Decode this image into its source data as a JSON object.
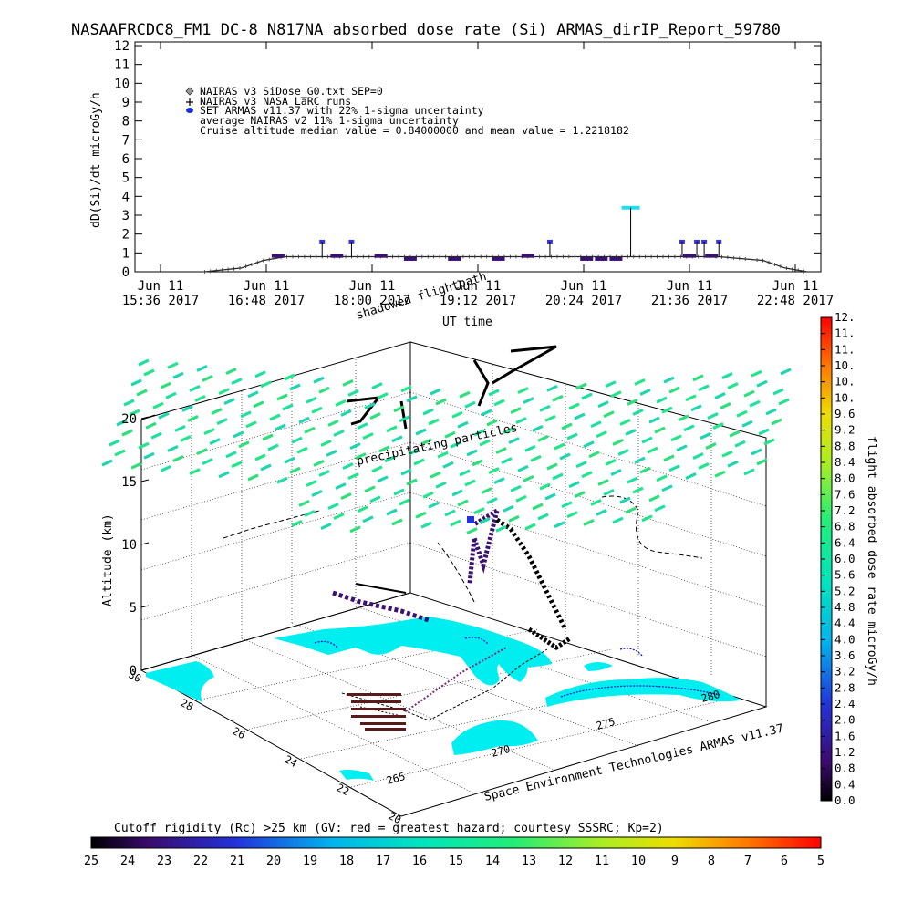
{
  "header": {
    "title": "NASAAFRCDC8_FM1 DC-8   N817NA absorbed dose rate (Si) ARMAS_dirIP_Report_59780"
  },
  "chart_data": [
    {
      "type": "line",
      "ylabel": "dD(Si)/dt microGy/h",
      "xlabel": "UT time",
      "ylim": [
        0,
        12
      ],
      "yticks": [
        "0",
        "1",
        "2",
        "3",
        "4",
        "5",
        "6",
        "7",
        "8",
        "9",
        "10",
        "11",
        "12"
      ],
      "xticks": [
        {
          "top": "Jun 11",
          "bottom": "15:36 2017"
        },
        {
          "top": "Jun 11",
          "bottom": "16:48 2017"
        },
        {
          "top": "Jun 11",
          "bottom": "18:00 2017"
        },
        {
          "top": "Jun 11",
          "bottom": "19:12 2017"
        },
        {
          "top": "Jun 11",
          "bottom": "20:24 2017"
        },
        {
          "top": "Jun 11",
          "bottom": "21:36 2017"
        },
        {
          "top": "Jun 11",
          "bottom": "22:48 2017"
        }
      ],
      "legend": [
        "NAIRAS v3 SiDose_G0.txt SEP=0",
        "NAIRAS v3 NASA LaRC runs",
        "SET ARMAS v11.37 with 22% 1-sigma uncertainty",
        "average NAIRAS v2 11% 1-sigma uncertainty",
        "Cruise altitude median value = 0.84000000 and mean value = 1.2218182"
      ],
      "legend_placement": "top-left",
      "colors": {
        "nairas": "#222222",
        "armas_cruise": "#3a1070",
        "armas_high": "#3333ee",
        "armas_peak": "#22ddee"
      },
      "series": [
        {
          "name": "NAIRAS v3 NASA LaRC runs",
          "x_minutes_from_1536": [
            30,
            55,
            70,
            85,
            100,
            140,
            200,
            260,
            300,
            340,
            380,
            410,
            425,
            440
          ],
          "values": [
            0,
            0.2,
            0.6,
            0.8,
            0.8,
            0.8,
            0.8,
            0.8,
            0.8,
            0.8,
            0.8,
            0.6,
            0.2,
            0
          ]
        },
        {
          "name": "SET ARMAS v11.37 with 22% 1-sigma uncertainty",
          "x_minutes_from_1536": [
            80,
            110,
            120,
            130,
            150,
            170,
            200,
            230,
            250,
            265,
            290,
            300,
            310,
            320,
            355,
            360,
            365,
            370,
            375,
            380
          ],
          "values": [
            0.84,
            1.6,
            0.84,
            1.6,
            0.84,
            0.68,
            0.68,
            0.68,
            0.84,
            1.6,
            0.68,
            0.68,
            0.68,
            3.4,
            1.6,
            0.84,
            1.6,
            1.6,
            0.84,
            1.6
          ]
        }
      ]
    },
    {
      "type": "scatter",
      "axis_label": "Altitude (km)",
      "zticks": [
        "0",
        "5",
        "10",
        "15",
        "20"
      ],
      "lat_ticks": [
        "30",
        "28",
        "26",
        "24",
        "22",
        "20"
      ],
      "lon_ticks": [
        "265",
        "270",
        "275",
        "280"
      ],
      "annotations": [
        "shadowed flightpath",
        "precipitating particles"
      ],
      "credit": "Space Environment Technologies ARMAS v11.37"
    }
  ],
  "right_colorbar": {
    "label": "flight absorbed dose rate microGy/h",
    "ticks": [
      "0.0",
      "0.4",
      "0.8",
      "1.2",
      "1.6",
      "2.0",
      "2.4",
      "2.8",
      "3.2",
      "3.6",
      "4.0",
      "4.4",
      "4.8",
      "5.2",
      "5.6",
      "6.0",
      "6.4",
      "6.8",
      "7.2",
      "7.6",
      "8.0",
      "8.4",
      "8.8",
      "9.2",
      "9.6",
      "10.",
      "10.",
      "10.",
      "11.",
      "11.",
      "12."
    ]
  },
  "bottom_colorbar": {
    "label": "Cutoff rigidity (Rc) >25 km (GV: red = greatest hazard; courtesy SSSRC; Kp=2)",
    "ticks": [
      "25",
      "24",
      "23",
      "22",
      "21",
      "20",
      "19",
      "18",
      "17",
      "16",
      "15",
      "14",
      "13",
      "12",
      "11",
      "10",
      "9",
      "8",
      "7",
      "6",
      "5"
    ]
  }
}
